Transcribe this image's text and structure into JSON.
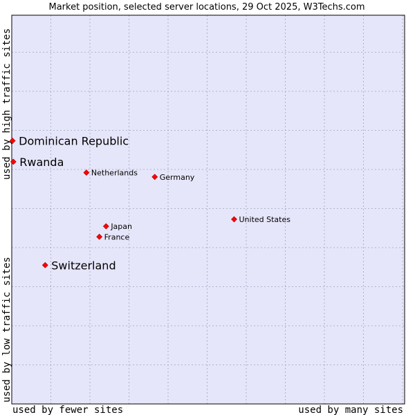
{
  "chart_data": {
    "type": "scatter",
    "title": "Market position, selected server locations, 29 Oct 2025, W3Techs.com",
    "xlabel_low": "used by fewer sites",
    "xlabel_high": "used by many sites",
    "ylabel_low": "used by low traffic sites",
    "ylabel_high": "used by high traffic sites",
    "xlim": [
      0,
      100
    ],
    "ylim": [
      0,
      100
    ],
    "grid": true,
    "colors": {
      "plot_bg": "#e6e6fa",
      "grid": "#a0a0c0",
      "point": "#ff0000",
      "point_stroke": "#a00000"
    },
    "points": [
      {
        "name": "Dominican Republic",
        "x": 0.2,
        "y": 67.7,
        "emphasis": true
      },
      {
        "name": "Rwanda",
        "x": 0.4,
        "y": 62.3,
        "emphasis": true
      },
      {
        "name": "Netherlands",
        "x": 19.0,
        "y": 59.5,
        "emphasis": false
      },
      {
        "name": "Germany",
        "x": 36.4,
        "y": 58.4,
        "emphasis": false
      },
      {
        "name": "United States",
        "x": 56.6,
        "y": 47.5,
        "emphasis": false
      },
      {
        "name": "Japan",
        "x": 24.0,
        "y": 45.7,
        "emphasis": false
      },
      {
        "name": "France",
        "x": 22.3,
        "y": 43.0,
        "emphasis": false
      },
      {
        "name": "Switzerland",
        "x": 8.5,
        "y": 35.7,
        "emphasis": true
      }
    ]
  }
}
